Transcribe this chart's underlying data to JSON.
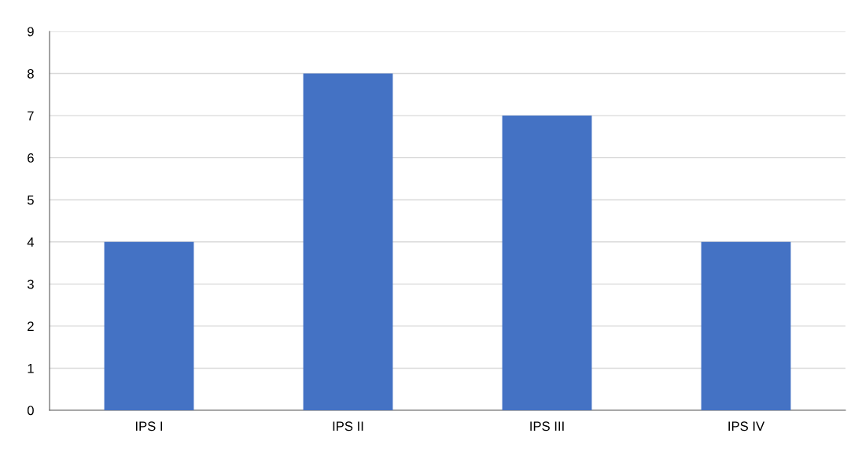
{
  "chart_data": {
    "type": "bar",
    "categories": [
      "IPS I",
      "IPS II",
      "IPS III",
      "IPS IV"
    ],
    "values": [
      4,
      8,
      7,
      4
    ],
    "color": "#4472c4",
    "ylim": [
      0,
      9
    ],
    "yticks": [
      0,
      1,
      2,
      3,
      4,
      5,
      6,
      7,
      8,
      9
    ],
    "grid": "y",
    "legend": false
  }
}
